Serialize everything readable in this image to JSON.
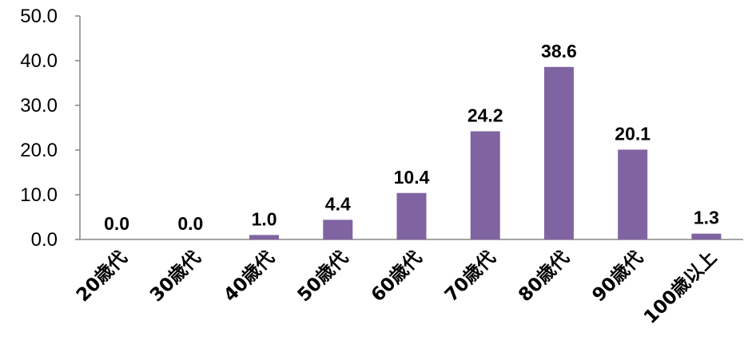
{
  "chart_data": {
    "type": "bar",
    "categories": [
      "20歳代",
      "30歳代",
      "40歳代",
      "50歳代",
      "60歳代",
      "70歳代",
      "80歳代",
      "90歳代",
      "100歳以上"
    ],
    "values": [
      0.0,
      0.0,
      1.0,
      4.4,
      10.4,
      24.2,
      38.6,
      20.1,
      1.3
    ],
    "data_labels": [
      "0.0",
      "0.0",
      "1.0",
      "4.4",
      "10.4",
      "24.2",
      "38.6",
      "20.1",
      "1.3"
    ],
    "yticks": [
      "0.0",
      "10.0",
      "20.0",
      "30.0",
      "40.0",
      "50.0"
    ],
    "ylim": [
      0,
      50
    ],
    "bar_color": "#8064a2",
    "title": "",
    "xlabel": "",
    "ylabel": "",
    "grid": false,
    "legend": "none"
  }
}
